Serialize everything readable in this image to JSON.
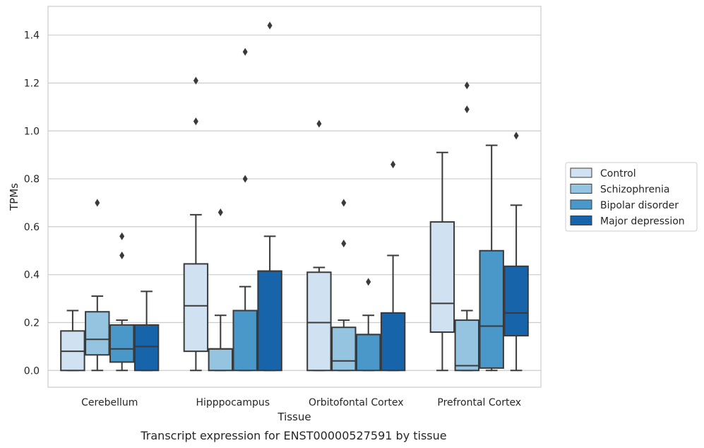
{
  "chart_data": {
    "type": "box",
    "title": "",
    "caption": "Transcript expression for ENST00000527591 by tissue",
    "xlabel": "Tissue",
    "ylabel": "TPMs",
    "ylim": [
      -0.07,
      1.52
    ],
    "yticks": [
      0.0,
      0.2,
      0.4,
      0.6,
      0.8,
      1.0,
      1.2,
      1.4
    ],
    "ytick_labels": [
      "0.0",
      "0.2",
      "0.4",
      "0.6",
      "0.8",
      "1.0",
      "1.2",
      "1.4"
    ],
    "grid": "horizontal",
    "legend_position": "right",
    "categories": [
      "Cerebellum",
      "Hipppocampus",
      "Orbitofontal Cortex",
      "Prefrontal Cortex"
    ],
    "series": [
      {
        "name": "Control",
        "color": "#d0e1f2",
        "boxes": [
          {
            "whislo": 0.0,
            "q1": 0.0,
            "med": 0.08,
            "q3": 0.165,
            "whishi": 0.25,
            "fliers": []
          },
          {
            "whislo": 0.0,
            "q1": 0.08,
            "med": 0.27,
            "q3": 0.445,
            "whishi": 0.65,
            "fliers": [
              1.04,
              1.21
            ]
          },
          {
            "whislo": 0.0,
            "q1": 0.0,
            "med": 0.2,
            "q3": 0.41,
            "whishi": 0.43,
            "fliers": [
              1.03
            ]
          },
          {
            "whislo": 0.0,
            "q1": 0.16,
            "med": 0.28,
            "q3": 0.62,
            "whishi": 0.91,
            "fliers": []
          }
        ]
      },
      {
        "name": "Schizophrenia",
        "color": "#94c4df",
        "boxes": [
          {
            "whislo": 0.0,
            "q1": 0.065,
            "med": 0.13,
            "q3": 0.245,
            "whishi": 0.31,
            "fliers": [
              0.7
            ]
          },
          {
            "whislo": 0.0,
            "q1": 0.0,
            "med": 0.09,
            "q3": 0.09,
            "whishi": 0.23,
            "fliers": [
              0.66
            ]
          },
          {
            "whislo": 0.0,
            "q1": 0.0,
            "med": 0.04,
            "q3": 0.18,
            "whishi": 0.21,
            "fliers": [
              0.53,
              0.7
            ]
          },
          {
            "whislo": 0.0,
            "q1": 0.0,
            "med": 0.02,
            "q3": 0.21,
            "whishi": 0.25,
            "fliers": [
              1.09,
              1.19
            ]
          }
        ]
      },
      {
        "name": "Bipolar disorder",
        "color": "#4a98c9",
        "boxes": [
          {
            "whislo": 0.0,
            "q1": 0.035,
            "med": 0.09,
            "q3": 0.19,
            "whishi": 0.21,
            "fliers": [
              0.48,
              0.56
            ]
          },
          {
            "whislo": 0.0,
            "q1": 0.0,
            "med": 0.25,
            "q3": 0.25,
            "whishi": 0.35,
            "fliers": [
              0.8,
              1.33
            ]
          },
          {
            "whislo": 0.0,
            "q1": 0.0,
            "med": 0.15,
            "q3": 0.15,
            "whishi": 0.23,
            "fliers": [
              0.37
            ]
          },
          {
            "whislo": 0.0,
            "q1": 0.01,
            "med": 0.185,
            "q3": 0.5,
            "whishi": 0.94,
            "fliers": []
          }
        ]
      },
      {
        "name": "Major depression",
        "color": "#1764ab",
        "boxes": [
          {
            "whislo": 0.0,
            "q1": 0.0,
            "med": 0.1,
            "q3": 0.19,
            "whishi": 0.33,
            "fliers": []
          },
          {
            "whislo": 0.0,
            "q1": 0.0,
            "med": 0.415,
            "q3": 0.415,
            "whishi": 0.56,
            "fliers": [
              1.44
            ]
          },
          {
            "whislo": 0.0,
            "q1": 0.0,
            "med": 0.24,
            "q3": 0.24,
            "whishi": 0.48,
            "fliers": [
              0.86
            ]
          },
          {
            "whislo": 0.0,
            "q1": 0.145,
            "med": 0.24,
            "q3": 0.435,
            "whishi": 0.69,
            "fliers": [
              0.98
            ]
          }
        ]
      }
    ]
  }
}
